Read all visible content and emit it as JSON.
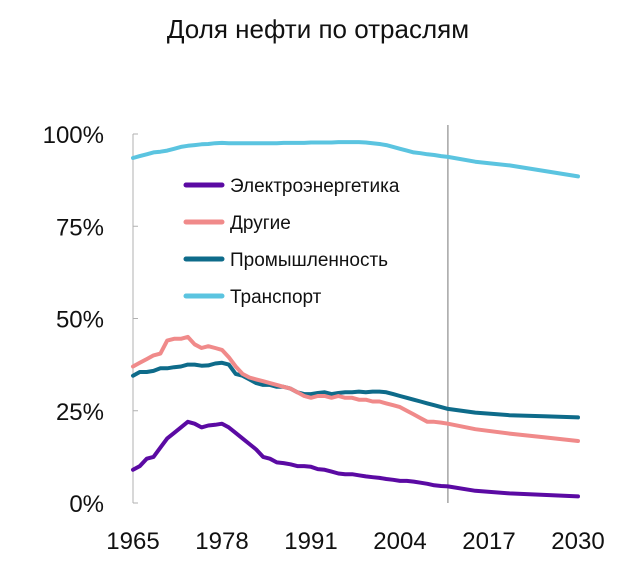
{
  "chart_data": {
    "type": "line",
    "title": "Доля нефти по отраслям",
    "xlabel": "",
    "ylabel": "",
    "xlim": [
      1965,
      2030
    ],
    "ylim": [
      0,
      100
    ],
    "x_ticks": [
      "1965",
      "1978",
      "1991",
      "2004",
      "2017",
      "2030"
    ],
    "y_ticks": [
      "0%",
      "25%",
      "50%",
      "75%",
      "100%"
    ],
    "projection_start": 2011,
    "legend_position": "upper-left",
    "grid": false,
    "x": [
      1965,
      1966,
      1967,
      1968,
      1969,
      1970,
      1971,
      1972,
      1973,
      1974,
      1975,
      1976,
      1977,
      1978,
      1979,
      1980,
      1981,
      1982,
      1983,
      1984,
      1985,
      1986,
      1987,
      1988,
      1989,
      1990,
      1991,
      1992,
      1993,
      1994,
      1995,
      1996,
      1997,
      1998,
      1999,
      2000,
      2001,
      2002,
      2003,
      2004,
      2005,
      2006,
      2007,
      2008,
      2009,
      2010,
      2011,
      2015,
      2020,
      2025,
      2030
    ],
    "series": [
      {
        "name": "Электроэнергетика",
        "color": "#5b0aa3",
        "values": [
          9,
          10,
          12,
          12.5,
          15,
          17.5,
          19,
          20.5,
          22,
          21.5,
          20.5,
          21,
          21.2,
          21.5,
          20.5,
          19,
          17.5,
          16,
          14.5,
          12.5,
          12,
          11,
          10.8,
          10.5,
          10,
          10,
          9.8,
          9.2,
          9,
          8.5,
          8,
          7.8,
          7.8,
          7.5,
          7.2,
          7,
          6.8,
          6.5,
          6.3,
          6,
          6,
          5.8,
          5.5,
          5.2,
          4.8,
          4.6,
          4.5,
          3.3,
          2.6,
          2.2,
          1.8
        ]
      },
      {
        "name": "Другие",
        "color": "#f08a8a",
        "values": [
          37,
          38,
          39,
          40,
          40.5,
          44,
          44.5,
          44.5,
          45,
          43,
          42,
          42.5,
          42,
          41.5,
          39.5,
          37,
          35,
          34,
          33.5,
          33,
          32.5,
          32,
          31.5,
          31,
          30,
          29,
          28.5,
          29,
          29,
          28.5,
          29,
          28.5,
          28.5,
          28,
          28,
          27.5,
          27.5,
          27,
          26.5,
          26,
          25,
          24,
          23,
          22,
          22,
          21.8,
          21.5,
          20,
          18.8,
          17.8,
          16.8
        ]
      },
      {
        "name": "Промышленность",
        "color": "#0e6b8a",
        "values": [
          34.5,
          35.5,
          35.5,
          35.8,
          36.5,
          36.5,
          36.8,
          37,
          37.5,
          37.5,
          37.2,
          37.3,
          37.8,
          38,
          37.5,
          35,
          34.5,
          33.5,
          32.5,
          32,
          32,
          31.5,
          31.5,
          31,
          30,
          29.5,
          29.5,
          29.8,
          30,
          29.5,
          29.8,
          30,
          30,
          30.2,
          30,
          30.2,
          30.2,
          30,
          29.5,
          29,
          28.5,
          28,
          27.5,
          27,
          26.5,
          26,
          25.5,
          24.5,
          23.8,
          23.5,
          23.2
        ]
      },
      {
        "name": "Транспорт",
        "color": "#5bc4e0",
        "values": [
          93.5,
          94,
          94.5,
          95,
          95.2,
          95.5,
          96,
          96.5,
          96.8,
          97,
          97.2,
          97.3,
          97.5,
          97.6,
          97.5,
          97.5,
          97.5,
          97.5,
          97.5,
          97.5,
          97.5,
          97.5,
          97.6,
          97.6,
          97.6,
          97.6,
          97.7,
          97.7,
          97.7,
          97.7,
          97.8,
          97.8,
          97.8,
          97.8,
          97.7,
          97.5,
          97.3,
          97,
          96.5,
          96,
          95.5,
          95,
          94.8,
          94.5,
          94.3,
          94,
          93.8,
          92.5,
          91.5,
          90,
          88.5
        ]
      }
    ]
  }
}
